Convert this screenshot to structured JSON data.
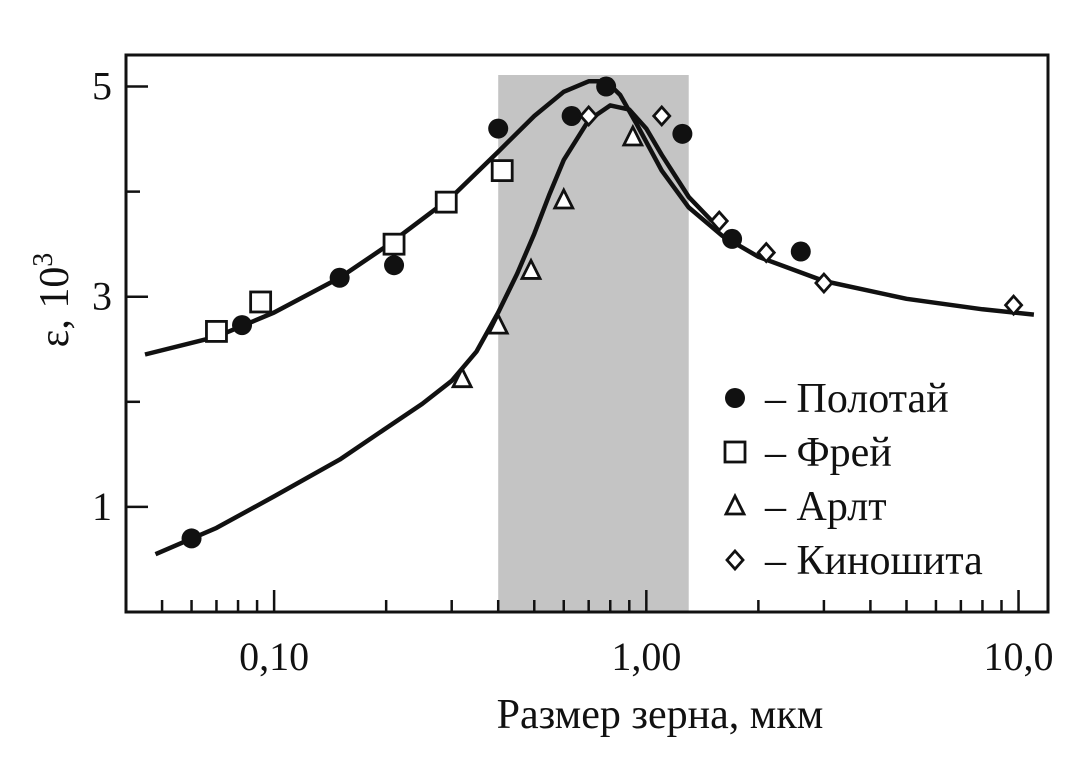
{
  "chart_data": {
    "type": "scatter",
    "xlabel": "Размер зерна, мкм",
    "ylabel_prefix": "ε, 10",
    "ylabel_exponent": "3",
    "x_scale": "log",
    "xlim": [
      0.04,
      12
    ],
    "ylim": [
      0,
      5.3
    ],
    "x_tick_labels": [
      {
        "value": 0.1,
        "label": "0,10"
      },
      {
        "value": 1.0,
        "label": "1,00"
      },
      {
        "value": 10.0,
        "label": "10,0"
      }
    ],
    "y_tick_labels": [
      {
        "value": 1,
        "label": "1"
      },
      {
        "value": 3,
        "label": "3"
      },
      {
        "value": 5,
        "label": "5"
      }
    ],
    "y_minor_ticks": [
      2,
      4
    ],
    "shaded_region": {
      "x": [
        0.4,
        1.3
      ]
    },
    "legend_position": "right",
    "legend_separator": "– ",
    "grid": false,
    "series": [
      {
        "name": "Полотай",
        "marker": "filled-circle",
        "x": [
          0.06,
          0.082,
          0.15,
          0.21,
          0.4,
          0.63,
          0.78,
          1.25,
          1.7,
          2.6
        ],
        "y": [
          0.7,
          2.73,
          3.18,
          3.3,
          4.6,
          4.72,
          5.0,
          4.55,
          3.55,
          3.43
        ]
      },
      {
        "name": "Фрей",
        "marker": "open-square",
        "x": [
          0.07,
          0.092,
          0.21,
          0.29,
          0.41
        ],
        "y": [
          2.67,
          2.95,
          3.5,
          3.9,
          4.2
        ]
      },
      {
        "name": "Арлт",
        "marker": "open-triangle",
        "x": [
          0.32,
          0.4,
          0.49,
          0.6,
          0.92
        ],
        "y": [
          2.22,
          2.73,
          3.25,
          3.92,
          4.52
        ]
      },
      {
        "name": "Киношита",
        "marker": "open-diamond",
        "x": [
          0.7,
          1.1,
          1.57,
          2.1,
          3.0,
          9.7
        ],
        "y": [
          4.72,
          4.72,
          3.72,
          3.42,
          3.13,
          2.92
        ]
      }
    ],
    "fit_curves": [
      {
        "x": [
          0.045,
          0.07,
          0.1,
          0.15,
          0.2,
          0.3,
          0.4,
          0.5,
          0.6,
          0.7,
          0.78,
          0.85,
          0.95,
          1.1,
          1.3,
          1.6,
          2.0,
          3.0,
          5.0,
          8.0,
          11.0
        ],
        "y": [
          2.45,
          2.62,
          2.85,
          3.18,
          3.48,
          3.95,
          4.38,
          4.72,
          4.95,
          5.05,
          5.05,
          4.92,
          4.62,
          4.2,
          3.85,
          3.58,
          3.38,
          3.15,
          2.98,
          2.88,
          2.83
        ]
      },
      {
        "x": [
          0.048,
          0.07,
          0.1,
          0.15,
          0.2,
          0.25,
          0.3,
          0.35,
          0.4,
          0.45,
          0.5,
          0.55,
          0.6,
          0.7,
          0.8,
          0.9,
          1.0,
          1.1,
          1.3,
          1.5
        ],
        "y": [
          0.55,
          0.8,
          1.1,
          1.45,
          1.75,
          1.98,
          2.2,
          2.48,
          2.85,
          3.22,
          3.6,
          3.98,
          4.3,
          4.68,
          4.82,
          4.78,
          4.6,
          4.35,
          3.95,
          3.72
        ]
      }
    ]
  }
}
